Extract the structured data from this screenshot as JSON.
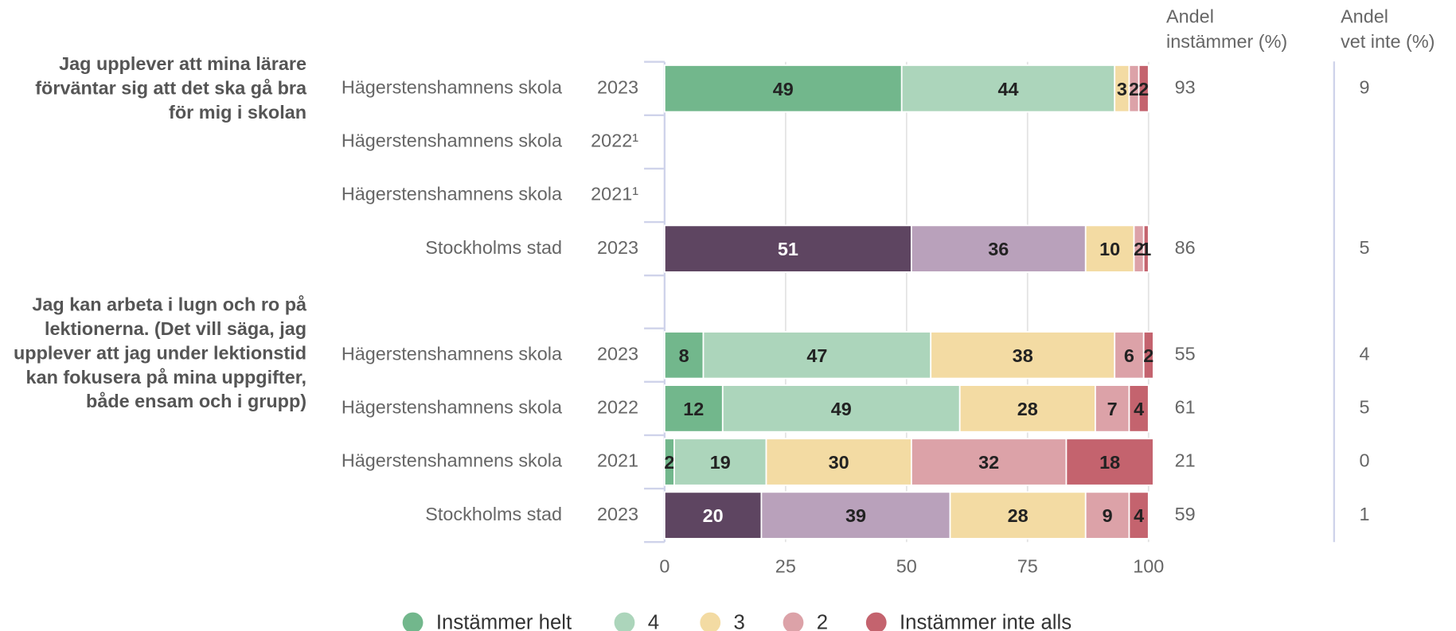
{
  "chart_data": {
    "type": "bar",
    "orientation": "horizontal",
    "stacked": true,
    "series": [
      {
        "name": "Instämmer helt",
        "color": "#72b78c"
      },
      {
        "name": "4",
        "color": "#acd5bb"
      },
      {
        "name": "3",
        "color": "#f3dba3"
      },
      {
        "name": "2",
        "color": "#dca2a8"
      },
      {
        "name": "Instämmer inte alls",
        "color": "#c4636e"
      }
    ],
    "agree_header": [
      "Andel",
      "instämmer (%)"
    ],
    "unsure_header": [
      "Andel",
      "vet inte (%)"
    ],
    "xlim": [
      0,
      100
    ],
    "xticks": [
      0,
      25,
      50,
      75,
      100
    ],
    "grid": true,
    "legend": "bottom",
    "groups": [
      {
        "lines": [
          "Jag upplever att mina lärare",
          "förväntar sig att det ska gå bra",
          "för mig i skolan"
        ],
        "categories": [
          "Hägerstenshamnens skola",
          "Hägerstenshamnens skola",
          "Hägerstenshamnens skola",
          "Stockholms stad"
        ],
        "years": [
          "2023",
          "2022¹",
          "2021¹",
          "2023"
        ],
        "series": [
          {
            "values": [
              49,
              null,
              null,
              51
            ],
            "colors": [
              "#72b78c",
              null,
              null,
              "#5e4561"
            ]
          },
          {
            "values": [
              44,
              null,
              null,
              36
            ],
            "colors": [
              "#acd5bb",
              null,
              null,
              "#b9a1bb"
            ]
          },
          {
            "values": [
              3,
              null,
              null,
              10
            ],
            "colors": [
              "#f3dba3",
              null,
              null,
              "#f3dba3"
            ]
          },
          {
            "values": [
              2,
              null,
              null,
              2
            ],
            "colors": [
              "#dca2a8",
              null,
              null,
              "#dca2a8"
            ]
          },
          {
            "values": [
              2,
              null,
              null,
              1
            ],
            "colors": [
              "#c4636e",
              null,
              null,
              "#c4636e"
            ]
          }
        ],
        "agree": [
          93,
          null,
          null,
          86
        ],
        "unsure": [
          9,
          null,
          null,
          5
        ]
      },
      {
        "lines": [
          "Jag kan arbeta i lugn och ro på",
          "lektionerna. (Det vill säga, jag",
          "upplever att jag under lektionstid",
          "kan fokusera på mina uppgifter,",
          "både ensam och i grupp)"
        ],
        "categories": [
          "Hägerstenshamnens skola",
          "Hägerstenshamnens skola",
          "Hägerstenshamnens skola",
          "Stockholms stad"
        ],
        "years": [
          "2023",
          "2022",
          "2021",
          "2023"
        ],
        "series": [
          {
            "values": [
              8,
              12,
              2,
              20
            ],
            "colors": [
              "#72b78c",
              "#72b78c",
              "#72b78c",
              "#5e4561"
            ]
          },
          {
            "values": [
              47,
              49,
              19,
              39
            ],
            "colors": [
              "#acd5bb",
              "#acd5bb",
              "#acd5bb",
              "#b9a1bb"
            ]
          },
          {
            "values": [
              38,
              28,
              30,
              28
            ],
            "colors": [
              "#f3dba3",
              "#f3dba3",
              "#f3dba3",
              "#f3dba3"
            ]
          },
          {
            "values": [
              6,
              7,
              32,
              9
            ],
            "colors": [
              "#dca2a8",
              "#dca2a8",
              "#dca2a8",
              "#dca2a8"
            ]
          },
          {
            "values": [
              2,
              4,
              18,
              4
            ],
            "colors": [
              "#c4636e",
              "#c4636e",
              "#c4636e",
              "#c4636e"
            ]
          }
        ],
        "agree": [
          55,
          61,
          21,
          59
        ],
        "unsure": [
          4,
          5,
          0,
          1
        ]
      }
    ]
  }
}
